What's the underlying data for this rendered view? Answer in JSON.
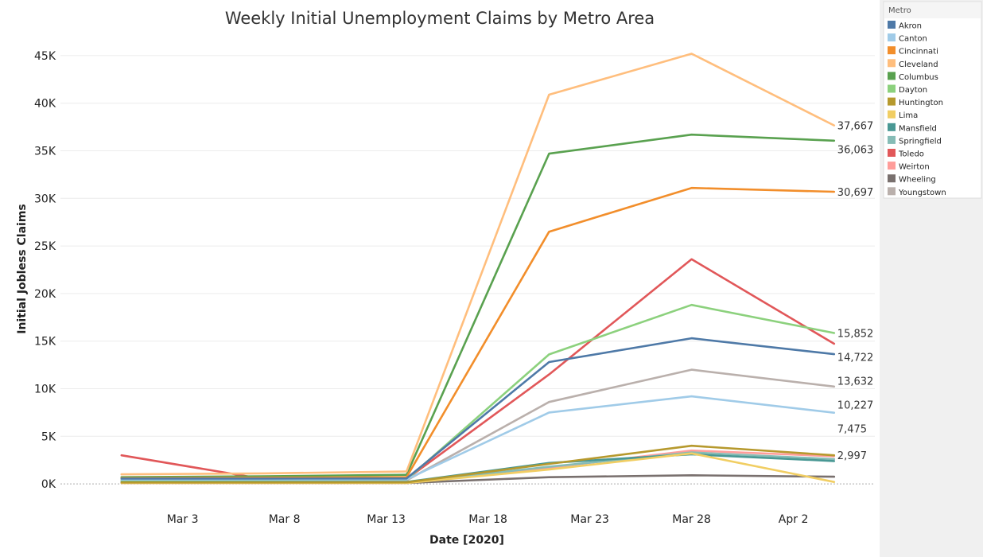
{
  "chart_data": {
    "type": "line",
    "title": "Weekly Initial Unemployment Claims by Metro Area",
    "xlabel": "Date [2020]",
    "ylabel": "Initial Jobless Claims",
    "x_dates": [
      "2020-02-29",
      "2020-03-07",
      "2020-03-14",
      "2020-03-21",
      "2020-03-28",
      "2020-04-04"
    ],
    "xlim_dates": [
      "2020-02-26",
      "2020-04-06"
    ],
    "xtick_dates": [
      "2020-03-03",
      "2020-03-08",
      "2020-03-13",
      "2020-03-18",
      "2020-03-23",
      "2020-03-28",
      "2020-04-02"
    ],
    "xtick_labels": [
      "Mar 3",
      "Mar 8",
      "Mar 13",
      "Mar 18",
      "Mar 23",
      "Mar 28",
      "Apr 2"
    ],
    "ylim": [
      -2000,
      47000
    ],
    "yticks": [
      0,
      5000,
      10000,
      15000,
      20000,
      25000,
      30000,
      35000,
      40000,
      45000
    ],
    "ytick_labels": [
      "0K",
      "5K",
      "10K",
      "15K",
      "20K",
      "25K",
      "30K",
      "35K",
      "40K",
      "45K"
    ],
    "gridlines": "horizontal",
    "legend_position": "top-right",
    "legend_title": "Metro",
    "series": [
      {
        "name": "Akron",
        "color": "#4e79a7",
        "values": [
          550,
          560,
          570,
          12800,
          15300,
          13632
        ],
        "end_label": "13,632"
      },
      {
        "name": "Canton",
        "color": "#a0cbe8",
        "values": [
          450,
          460,
          470,
          7500,
          9200,
          7475
        ],
        "end_label": "7,475"
      },
      {
        "name": "Cincinnati",
        "color": "#f28e2b",
        "values": [
          600,
          650,
          700,
          26500,
          31100,
          30697
        ],
        "end_label": "30,697"
      },
      {
        "name": "Cleveland",
        "color": "#ffbe7d",
        "values": [
          1000,
          1100,
          1300,
          40900,
          45200,
          37667
        ],
        "end_label": "37,667"
      },
      {
        "name": "Columbus",
        "color": "#59a14f",
        "values": [
          700,
          800,
          950,
          34700,
          36700,
          36063
        ],
        "end_label": "36,063"
      },
      {
        "name": "Dayton",
        "color": "#8cd17d",
        "values": [
          400,
          420,
          450,
          13600,
          18800,
          15852
        ],
        "end_label": "15,852"
      },
      {
        "name": "Huntington",
        "color": "#b6992d",
        "values": [
          150,
          150,
          160,
          2100,
          4000,
          2997
        ],
        "end_label": "2,997"
      },
      {
        "name": "Lima",
        "color": "#f1ce63",
        "values": [
          100,
          100,
          100,
          1500,
          3200,
          200
        ],
        "end_label": ""
      },
      {
        "name": "Mansfield",
        "color": "#499894",
        "values": [
          200,
          200,
          200,
          2200,
          3100,
          2400
        ],
        "end_label": ""
      },
      {
        "name": "Springfield",
        "color": "#86bcb6",
        "values": [
          150,
          150,
          150,
          1800,
          3300,
          2600
        ],
        "end_label": ""
      },
      {
        "name": "Toledo",
        "color": "#e15759",
        "values": [
          3000,
          500,
          500,
          11500,
          23600,
          14722
        ],
        "end_label": "14,722"
      },
      {
        "name": "Weirton",
        "color": "#ff9d9a",
        "values": [
          100,
          100,
          100,
          1700,
          3500,
          2900
        ],
        "end_label": ""
      },
      {
        "name": "Wheeling",
        "color": "#79706e",
        "values": [
          100,
          100,
          100,
          700,
          900,
          750
        ],
        "end_label": ""
      },
      {
        "name": "Youngstown",
        "color": "#bab0ac",
        "values": [
          350,
          360,
          370,
          8600,
          12000,
          10227
        ],
        "end_label": "10,227"
      }
    ]
  }
}
